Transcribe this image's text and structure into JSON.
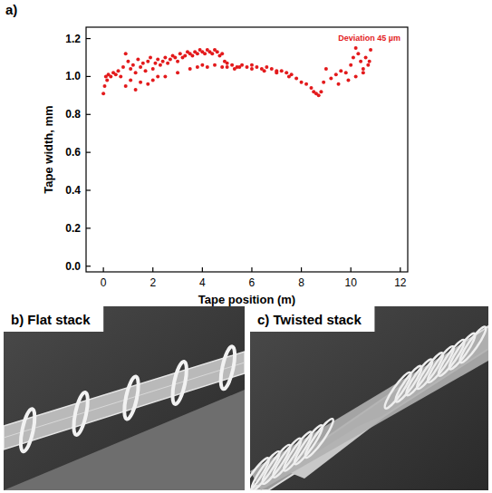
{
  "chart_data": {
    "type": "scatter",
    "panel": "a)",
    "xlabel": "Tape position (m)",
    "ylabel": "Tape width, mm",
    "annotation": "Deviation 45 µm",
    "color": "#e31a1c",
    "marker": "circle",
    "grid": false,
    "x": [
      0,
      0.05,
      0.1,
      0.15,
      0.2,
      0.3,
      0.4,
      0.5,
      0.6,
      0.7,
      0.8,
      0.9,
      1.0,
      1.1,
      1.2,
      1.3,
      1.4,
      1.5,
      1.6,
      1.7,
      1.8,
      1.9,
      2.0,
      2.1,
      2.2,
      2.3,
      2.4,
      2.5,
      2.6,
      2.7,
      2.8,
      2.9,
      3.0,
      3.1,
      3.2,
      3.3,
      3.4,
      3.5,
      3.6,
      3.7,
      3.8,
      3.9,
      4.0,
      4.1,
      4.2,
      4.3,
      4.4,
      4.5,
      4.6,
      4.7,
      4.8,
      4.9,
      5.0,
      5.2,
      5.4,
      5.6,
      5.8,
      6.0,
      6.2,
      6.4,
      6.6,
      6.8,
      7.0,
      7.2,
      7.4,
      7.6,
      7.8,
      8.0,
      8.2,
      8.4,
      8.5,
      8.6,
      8.7,
      8.8,
      8.9,
      9.0,
      9.2,
      9.4,
      9.6,
      9.8,
      10.0,
      10.1,
      10.2,
      10.3,
      10.4,
      10.5,
      10.6,
      10.7,
      10.8,
      0.9,
      1.1,
      1.3,
      1.5,
      1.8,
      2.0,
      2.2,
      2.5,
      3.0,
      3.5,
      3.8,
      4.0,
      4.2,
      4.5,
      4.8,
      5.0,
      5.3,
      5.5,
      6.0,
      6.5,
      7.0,
      7.5,
      9.5,
      9.9,
      10.2,
      10.5,
      10.75
    ],
    "values": [
      0.91,
      0.95,
      1.0,
      0.98,
      1.01,
      1.0,
      1.02,
      1.01,
      1.03,
      1.0,
      1.05,
      1.12,
      1.08,
      1.04,
      1.06,
      1.02,
      1.09,
      1.05,
      1.07,
      1.03,
      1.08,
      1.1,
      1.04,
      1.07,
      1.09,
      1.06,
      1.08,
      1.1,
      1.07,
      1.09,
      1.11,
      1.1,
      1.08,
      1.12,
      1.1,
      1.11,
      1.13,
      1.12,
      1.11,
      1.13,
      1.12,
      1.14,
      1.13,
      1.12,
      1.14,
      1.13,
      1.12,
      1.14,
      1.13,
      1.11,
      1.12,
      1.08,
      1.07,
      1.06,
      1.05,
      1.06,
      1.05,
      1.06,
      1.05,
      1.04,
      1.05,
      1.04,
      1.03,
      1.03,
      1.02,
      1.01,
      0.99,
      0.97,
      0.96,
      0.94,
      0.92,
      0.91,
      0.9,
      0.92,
      0.97,
      1.04,
      0.99,
      1.01,
      1.03,
      1.02,
      1.06,
      1.1,
      1.15,
      1.12,
      1.08,
      1.04,
      1.1,
      1.06,
      1.14,
      0.95,
      0.98,
      0.93,
      0.97,
      0.96,
      0.98,
      1.0,
      1.0,
      1.02,
      1.04,
      1.05,
      1.06,
      1.05,
      1.06,
      1.05,
      1.05,
      1.04,
      1.05,
      1.04,
      1.03,
      1.02,
      1.0,
      0.96,
      0.98,
      1.0,
      1.02,
      1.08
    ],
    "xlim": [
      -0.7,
      12.3
    ],
    "xticks": [
      0,
      2,
      4,
      6,
      8,
      10,
      12
    ],
    "ylim": [
      -0.03,
      1.26
    ],
    "yticks": [
      {
        "value": 0,
        "label": "0.0"
      },
      {
        "value": 0.2,
        "label": "0.2"
      },
      {
        "value": 0.4,
        "label": "0.4"
      },
      {
        "value": 0.6,
        "label": "0.6"
      },
      {
        "value": 0.8,
        "label": "0.8"
      },
      {
        "value": 1,
        "label": "1.0"
      },
      {
        "value": 1.2,
        "label": "1.2"
      }
    ]
  },
  "panels": [
    {
      "label": "b) Flat stack"
    },
    {
      "label": "c) Twisted stack"
    }
  ]
}
